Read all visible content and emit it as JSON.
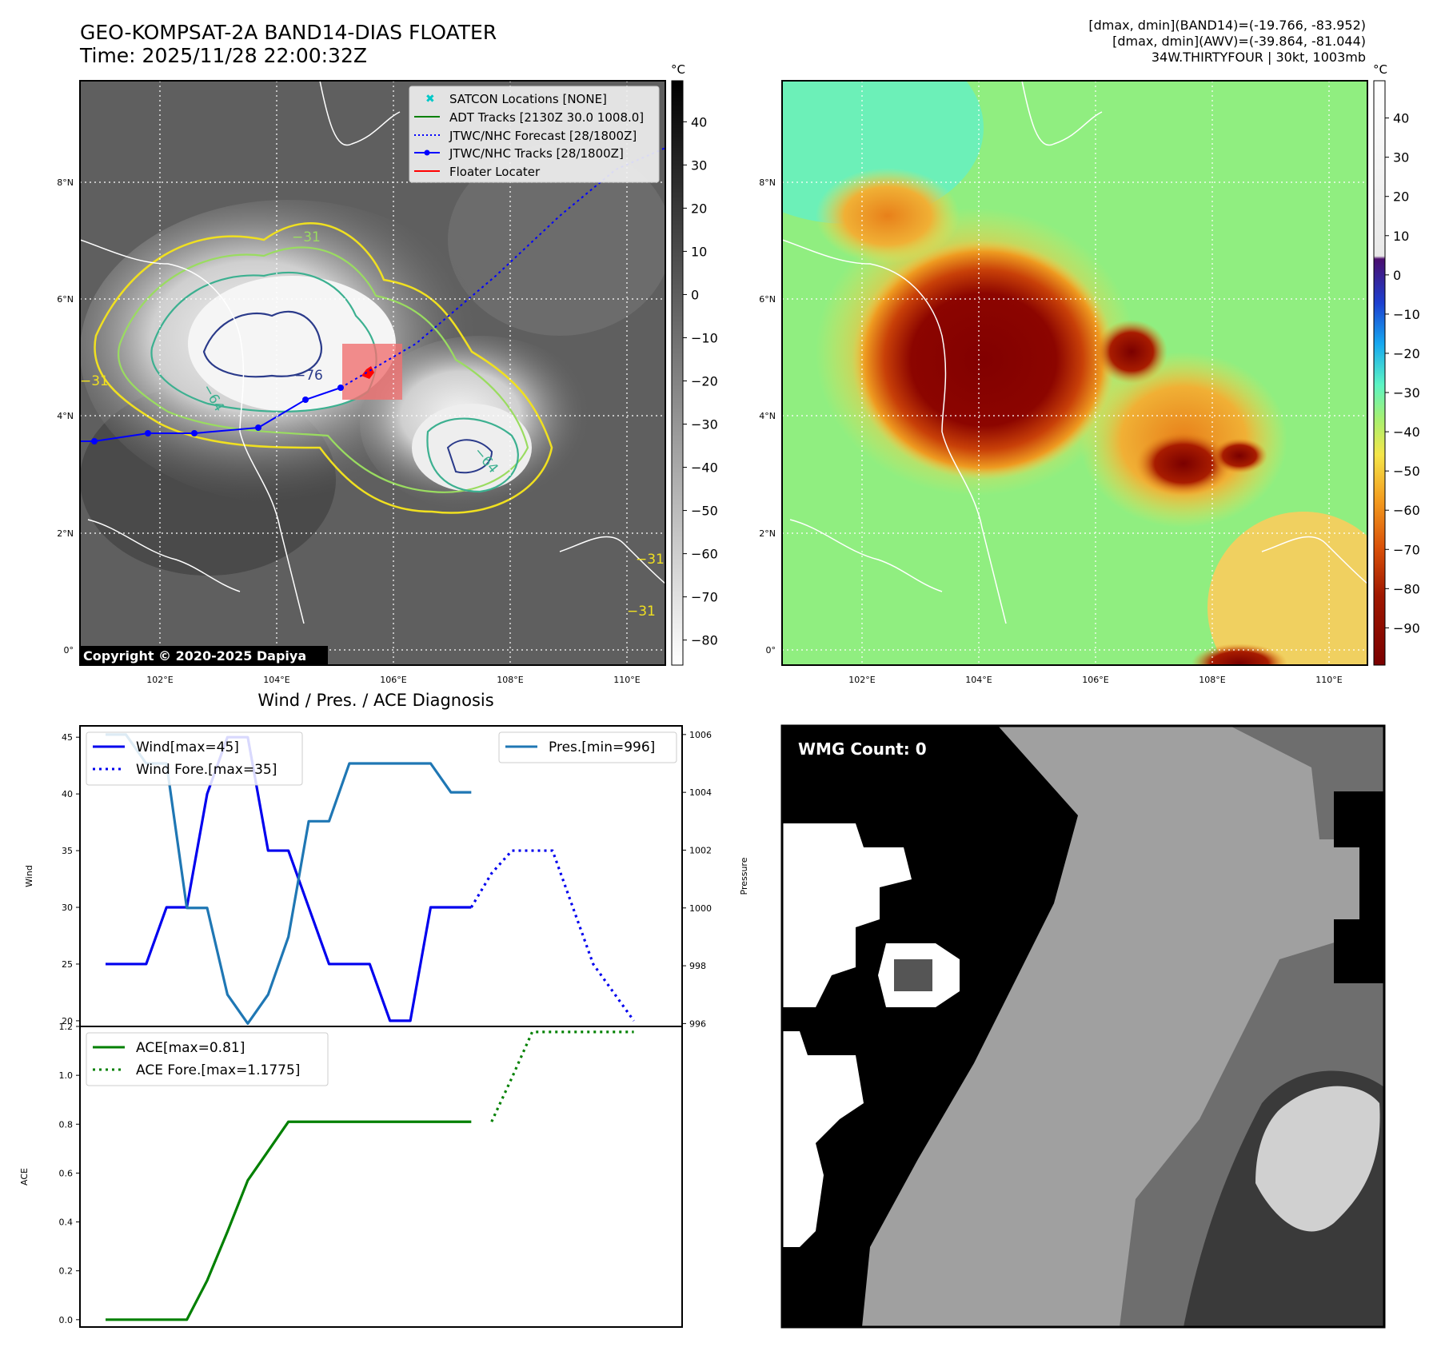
{
  "header": {
    "title_line1": "GEO-KOMPSAT-2A BAND14-DIAS FLOATER",
    "title_line2": "Time: 2025/11/28 22:00:32Z",
    "info_line1": "[dmax, dmin](BAND14)=(-19.766, -83.952)",
    "info_line2": "[dmax, dmin](AWV)=(-39.864, -81.044)",
    "info_line3": "34W.THIRTYFOUR | 30kt, 1003mb"
  },
  "ir_panel": {
    "unit": "°C",
    "lat_labels": [
      "8°N",
      "6°N",
      "4°N",
      "2°N",
      "0°"
    ],
    "lon_labels": [
      "102°E",
      "104°E",
      "106°E",
      "108°E",
      "110°E"
    ],
    "colorbar_ticks": [
      "40",
      "30",
      "20",
      "10",
      "0",
      "−10",
      "−20",
      "−30",
      "−40",
      "−50",
      "−60",
      "−70",
      "−80"
    ],
    "contour_labels": [
      "−31",
      "−64",
      "−76",
      "−64",
      "−31",
      "−31",
      "−31"
    ],
    "copyright": "Copyright © 2020-2025 Dapiya",
    "legend": [
      {
        "label": "SATCON Locations [NONE]",
        "color": "#00c8c8",
        "style": "x"
      },
      {
        "label": "ADT Tracks [2130Z 30.0 1008.0]",
        "color": "#008000",
        "style": "solid"
      },
      {
        "label": "JTWC/NHC Forecast [28/1800Z]",
        "color": "#0000ff",
        "style": "dotted"
      },
      {
        "label": "JTWC/NHC Tracks [28/1800Z]",
        "color": "#0000ff",
        "style": "solid-marker"
      },
      {
        "label": "Floater Locater",
        "color": "#ff0000",
        "style": "solid"
      }
    ]
  },
  "awv_panel": {
    "unit": "°C",
    "lat_labels": [
      "8°N",
      "6°N",
      "4°N",
      "2°N",
      "0°"
    ],
    "lon_labels": [
      "102°E",
      "104°E",
      "106°E",
      "108°E",
      "110°E"
    ],
    "colorbar_ticks": [
      "40",
      "30",
      "20",
      "10",
      "0",
      "−10",
      "−20",
      "−30",
      "−40",
      "−50",
      "−60",
      "−70",
      "−80",
      "−90"
    ]
  },
  "diagnosis": {
    "title": "Wind / Pres. / ACE Diagnosis",
    "wind_ylabel": "Wind",
    "pres_ylabel": "Pressure",
    "ace_ylabel": "ACE",
    "wind_ticks": [
      "45",
      "40",
      "35",
      "30",
      "25",
      "20"
    ],
    "pres_ticks": [
      "1006",
      "1004",
      "1002",
      "1000",
      "998",
      "996"
    ],
    "ace_ticks": [
      "1.2",
      "1.0",
      "0.8",
      "0.6",
      "0.4",
      "0.2",
      "0.0"
    ],
    "legend_wind": "Wind[max=45]",
    "legend_wind_fore": "Wind Fore.[max=35]",
    "legend_pres": "Pres.[min=996]",
    "legend_ace": "ACE[max=0.81]",
    "legend_ace_fore": "ACE Fore.[max=1.1775]"
  },
  "wmg_panel": {
    "label": "WMG Count: 0"
  },
  "colors": {
    "wind": "#0000ee",
    "pressure": "#1f77b4",
    "ace": "#008000",
    "track": "#0000ff",
    "floater": "#ff0000"
  },
  "chart_data": [
    {
      "type": "line",
      "name": "wind",
      "ylim": [
        19.5,
        46
      ],
      "x": [
        0,
        1,
        2,
        3,
        4,
        5,
        6,
        7,
        8,
        9,
        10,
        11,
        12,
        13,
        14,
        15,
        16,
        17,
        18,
        19,
        20,
        21,
        22,
        23,
        24,
        25,
        26,
        27
      ],
      "series": [
        {
          "name": "Wind[max=45]",
          "values": [
            25,
            25,
            25,
            30,
            30,
            40,
            45,
            45,
            35,
            35,
            30,
            25,
            25,
            25,
            20,
            20,
            30,
            30,
            30,
            null,
            null,
            null,
            null,
            null,
            null,
            null,
            null,
            null
          ]
        },
        {
          "name": "Wind Fore.[max=35]",
          "values": [
            null,
            null,
            null,
            null,
            null,
            null,
            null,
            null,
            null,
            null,
            null,
            null,
            null,
            null,
            null,
            null,
            null,
            null,
            30,
            33,
            35,
            35,
            35,
            30,
            25,
            22.5,
            20,
            null
          ]
        }
      ]
    },
    {
      "type": "line",
      "name": "pressure",
      "ylim": [
        995.9,
        1006.3
      ],
      "x": [
        0,
        1,
        2,
        3,
        4,
        5,
        6,
        7,
        8,
        9,
        10,
        11,
        12,
        13,
        14,
        15,
        16,
        17,
        18
      ],
      "series": [
        {
          "name": "Pres.[min=996]",
          "values": [
            1006,
            1006,
            1005,
            1005,
            1000,
            1000,
            997,
            996,
            997,
            999,
            1003,
            1003,
            1005,
            1005,
            1005,
            1005,
            1005,
            1004,
            1004
          ]
        }
      ]
    },
    {
      "type": "line",
      "name": "ace",
      "ylim": [
        -0.03,
        1.2
      ],
      "x": [
        0,
        1,
        2,
        3,
        4,
        5,
        6,
        7,
        8,
        9,
        10,
        11,
        12,
        13,
        14,
        15,
        16,
        17,
        18,
        19,
        20,
        21,
        22,
        23,
        24,
        25,
        26,
        27
      ],
      "series": [
        {
          "name": "ACE[max=0.81]",
          "values": [
            0,
            0,
            0,
            0,
            0,
            0.16,
            0.36,
            0.57,
            0.69,
            0.81,
            0.81,
            0.81,
            0.81,
            0.81,
            0.81,
            0.81,
            0.81,
            0.81,
            0.81,
            null,
            null,
            null,
            null,
            null,
            null,
            null,
            null,
            null
          ]
        },
        {
          "name": "ACE Fore.[max=1.1775]",
          "values": [
            null,
            null,
            null,
            null,
            null,
            null,
            null,
            null,
            null,
            null,
            null,
            null,
            null,
            null,
            null,
            null,
            null,
            null,
            null,
            0.81,
            0.99,
            1.1775,
            1.1775,
            1.1775,
            1.1775,
            1.1775,
            1.1775,
            null
          ]
        }
      ]
    }
  ]
}
